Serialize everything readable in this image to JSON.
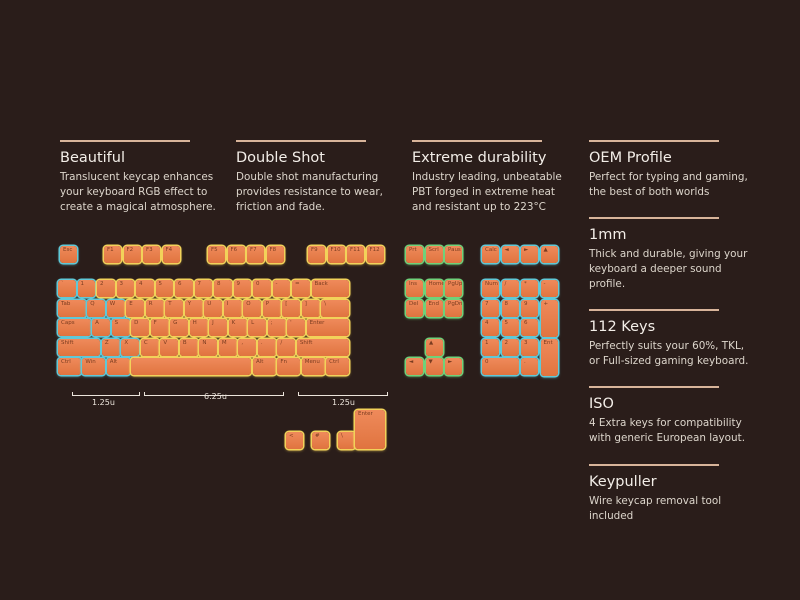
{
  "colors": {
    "background": "#2a1d1a",
    "keycap": "#e8804e",
    "glow_blue": "#5fc9d8",
    "glow_yellow": "#f2d25a",
    "glow_green": "#6fd27a",
    "divider": "#d8b49a"
  },
  "features": [
    {
      "title": "Beautiful",
      "desc": "Translucent keycap enhances your keyboard RGB effect to create a magical atmosphere."
    },
    {
      "title": "Double Shot",
      "desc": "Double shot manufacturing provides resistance to wear, friction and fade."
    },
    {
      "title": "Extreme durability",
      "desc": "Industry leading, unbeatable PBT forged in extreme heat and resistant up to 223°C"
    },
    {
      "title": "OEM Profile",
      "desc": "Perfect for typing and gaming, the best of both worlds"
    },
    {
      "title": "1mm",
      "desc": "Thick and durable, giving your keyboard a deeper sound profile."
    },
    {
      "title": "112 Keys",
      "desc": "Perfectly suits your 60%, TKL, or Full-sized gaming keyboard."
    },
    {
      "title": "ISO",
      "desc": "4 Extra keys for compatibility with generic European layout."
    },
    {
      "title": "Keypuller",
      "desc": "Wire keycap removal tool included"
    }
  ],
  "dimensions": [
    "1.25u",
    "6.25u",
    "1.25u"
  ]
}
